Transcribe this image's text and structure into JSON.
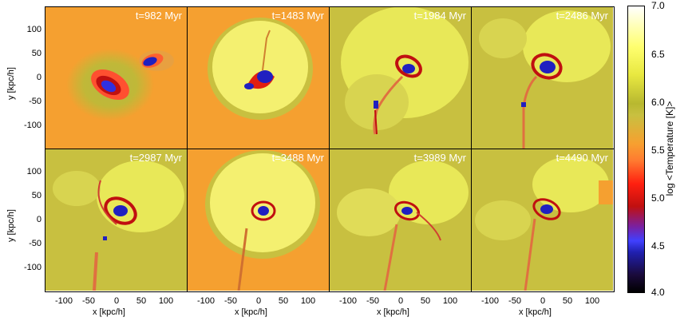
{
  "panels": [
    {
      "label": "t=982 Myr"
    },
    {
      "label": "t=1483 Myr"
    },
    {
      "label": "t=1984 Myr"
    },
    {
      "label": "t=2486 Myr"
    },
    {
      "label": "t=2987 Myr"
    },
    {
      "label": "t=3488 Myr"
    },
    {
      "label": "t=3989 Myr"
    },
    {
      "label": "t=4490 Myr"
    }
  ],
  "axes": {
    "xlabel": "x [kpc/h]",
    "ylabel": "y [kpc/h]",
    "xticks": [
      "-100",
      "-50",
      "0",
      "50",
      "100"
    ],
    "yticks": [
      "100",
      "50",
      "0",
      "-50",
      "-100"
    ]
  },
  "colorbar": {
    "label": "log <Temperature [K]>",
    "ticks": [
      "7.0",
      "6.5",
      "6.0",
      "5.5",
      "5.0",
      "4.5",
      "4.0"
    ],
    "range": [
      4.0,
      7.0
    ]
  },
  "colors": {
    "background_orange": "#f5a030",
    "hot_yellow": "#f2f060",
    "mid_olive": "#b8b840",
    "cold_blue": "#2020d0",
    "cool_red": "#e02010"
  }
}
